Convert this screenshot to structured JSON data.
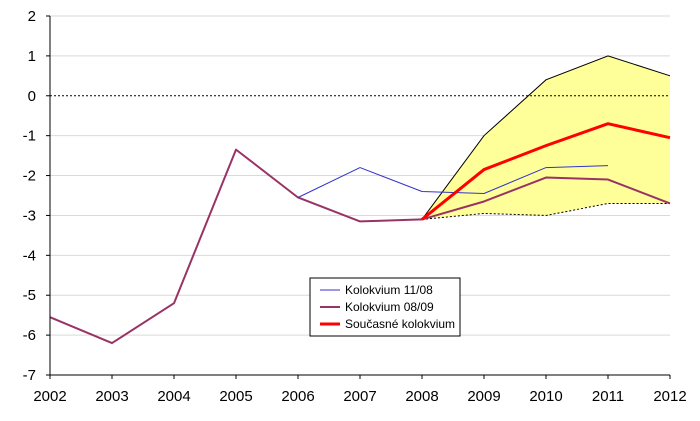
{
  "chart_data": {
    "type": "line",
    "x": [
      2002,
      2003,
      2004,
      2005,
      2006,
      2007,
      2008,
      2009,
      2010,
      2011,
      2012
    ],
    "xlim": [
      2002,
      2012
    ],
    "ylim": [
      -7,
      2
    ],
    "yticks": [
      2,
      1,
      0,
      -1,
      -2,
      -3,
      -4,
      -5,
      -6,
      -7
    ],
    "grid": true,
    "zero_line": "dotted",
    "legend_position": "center-bottom",
    "band": {
      "color": "#ffff99",
      "x": [
        2008,
        2009,
        2010,
        2011,
        2012
      ],
      "upper": [
        -3.1,
        -1.0,
        0.4,
        1.0,
        0.5
      ],
      "lower": [
        -3.1,
        -2.95,
        -3.0,
        -2.7,
        -2.7
      ]
    },
    "series": [
      {
        "name": "Kolokvium 11/08",
        "color": "#3333cc",
        "width": 1,
        "x": [
          2006,
          2007,
          2008,
          2009,
          2010,
          2011
        ],
        "values": [
          -2.55,
          -1.8,
          -2.4,
          -2.45,
          -1.8,
          -1.75
        ]
      },
      {
        "name": "Kolokvium 08/09",
        "color": "#993366",
        "width": 2,
        "x": [
          2002,
          2003,
          2004,
          2005,
          2006,
          2007,
          2008,
          2009,
          2010,
          2011,
          2012
        ],
        "values": [
          -5.55,
          -6.2,
          -5.2,
          -1.35,
          -2.55,
          -3.15,
          -3.1,
          -2.65,
          -2.05,
          -2.1,
          -2.7
        ]
      },
      {
        "name": "Současné kolokvium",
        "color": "#ff0000",
        "width": 3,
        "x": [
          2008,
          2009,
          2010,
          2011,
          2012
        ],
        "values": [
          -3.1,
          -1.85,
          -1.25,
          -0.7,
          -1.05
        ]
      }
    ]
  }
}
